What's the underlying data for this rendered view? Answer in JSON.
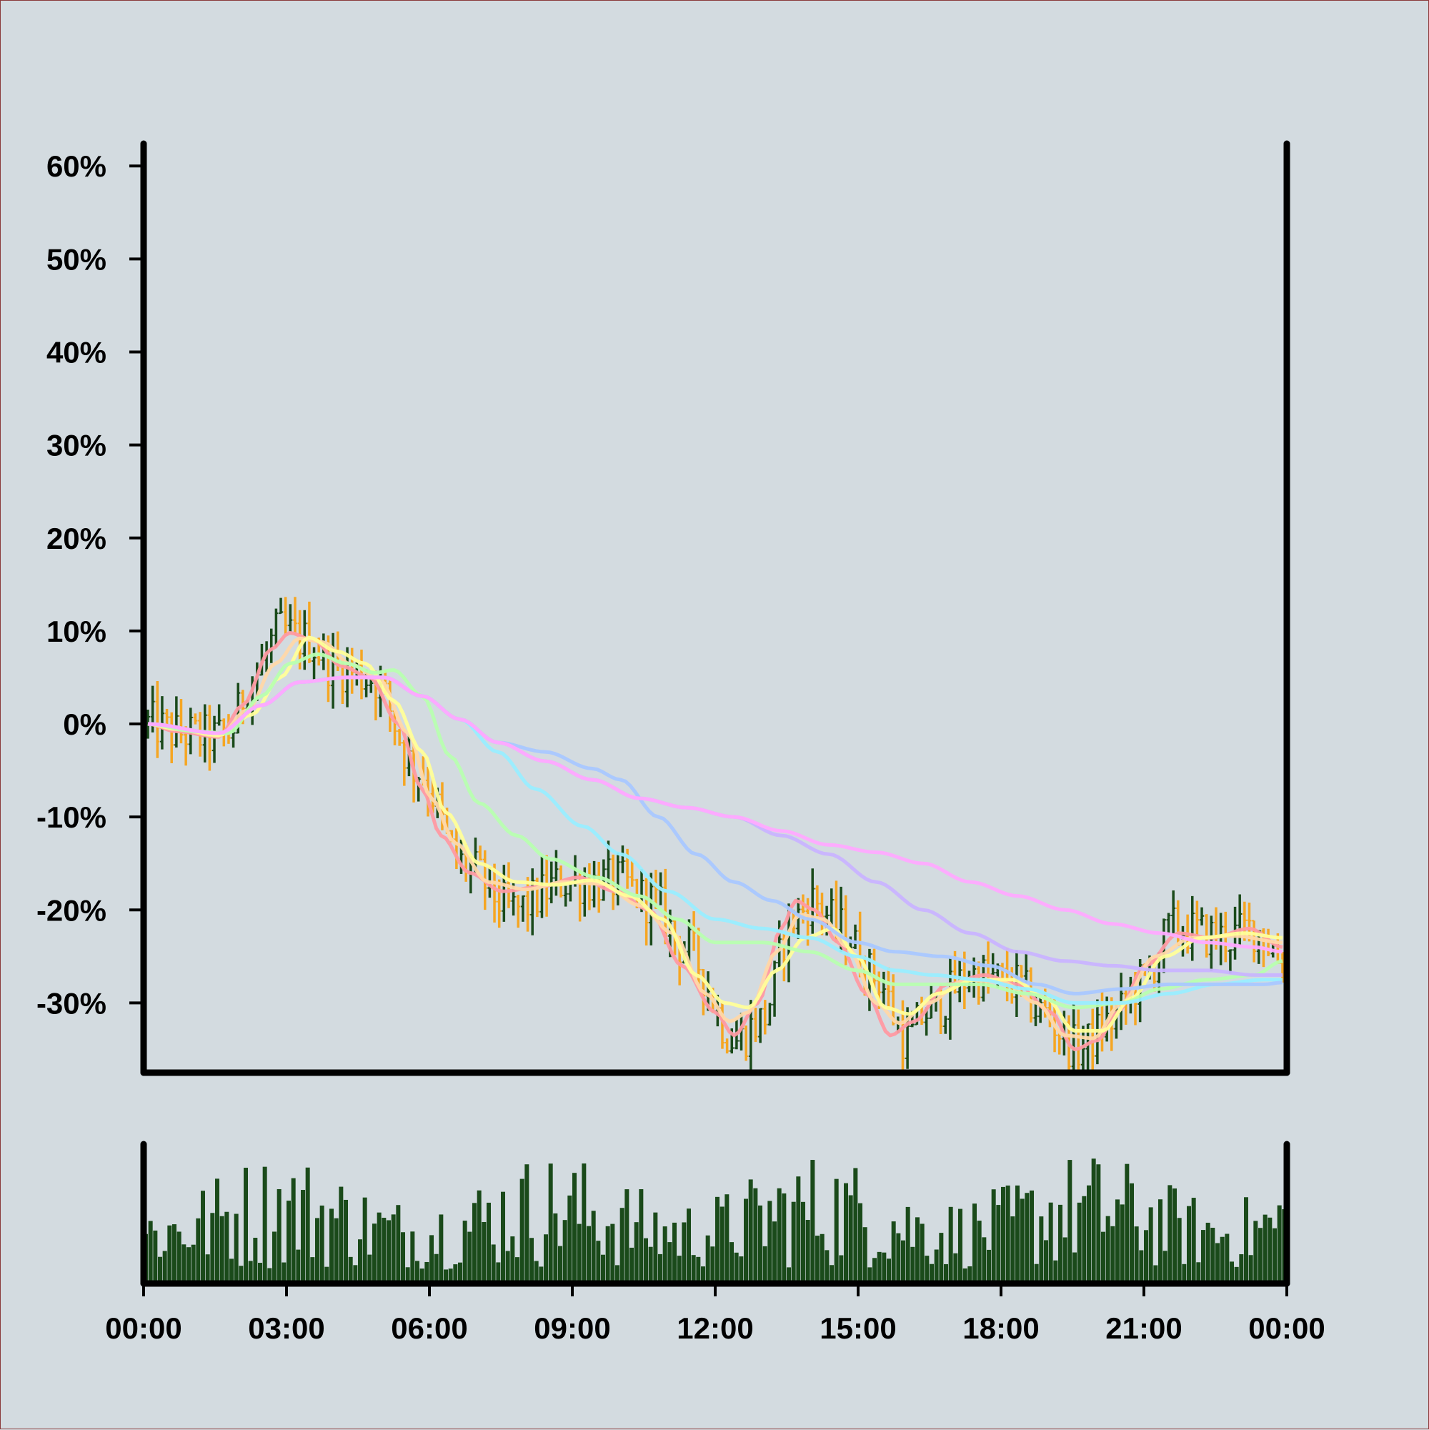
{
  "chart_data": {
    "type": "ohlc",
    "title": "",
    "xlabel": "",
    "ylabel": "",
    "ylim": [
      -37.5,
      62.4
    ],
    "y_ticks": [
      60,
      50,
      40,
      30,
      20,
      10,
      0,
      -10,
      -20,
      -30
    ],
    "y_tick_labels": [
      "60%",
      "50%",
      "40%",
      "30%",
      "20%",
      "10%",
      "0%",
      "-10%",
      "-20%",
      "-30%"
    ],
    "x_tick_labels": [
      "00:00",
      "03:00",
      "06:00",
      "09:00",
      "12:00",
      "15:00",
      "18:00",
      "21:00",
      "00:00"
    ],
    "bar_count": 240,
    "up_color": "#1a4a1a",
    "down_color": "#f5a623",
    "volume_color": "#1a4a1a",
    "price_path": [
      [
        0,
        0
      ],
      [
        6,
        -1
      ],
      [
        14,
        -1.5
      ],
      [
        17,
        -1
      ],
      [
        22,
        5
      ],
      [
        28,
        10
      ],
      [
        33,
        9
      ],
      [
        40,
        6
      ],
      [
        47,
        5
      ],
      [
        57,
        -5
      ],
      [
        66,
        -15
      ],
      [
        77,
        -20
      ],
      [
        88,
        -17
      ],
      [
        99,
        -17
      ],
      [
        106,
        -19
      ],
      [
        113,
        -24
      ],
      [
        124,
        -34
      ],
      [
        129,
        -32
      ],
      [
        136,
        -21
      ],
      [
        140,
        -19
      ],
      [
        146,
        -22
      ],
      [
        153,
        -27
      ],
      [
        160,
        -34
      ],
      [
        164,
        -31
      ],
      [
        174,
        -27
      ],
      [
        183,
        -28
      ],
      [
        188,
        -31
      ],
      [
        196,
        -35
      ],
      [
        203,
        -32
      ],
      [
        209,
        -28
      ],
      [
        216,
        -22
      ],
      [
        227,
        -23
      ],
      [
        233,
        -22
      ],
      [
        240,
        -26
      ]
    ],
    "series": [
      {
        "color": "#ff9aa2",
        "values": [
          [
            0,
            0
          ],
          [
            6,
            -0.8
          ],
          [
            15,
            -1.4
          ],
          [
            20,
            2
          ],
          [
            26,
            8
          ],
          [
            30,
            9.8
          ],
          [
            35,
            9
          ],
          [
            41,
            6.2
          ],
          [
            47,
            5
          ],
          [
            53,
            0
          ],
          [
            58,
            -7
          ],
          [
            62,
            -12
          ],
          [
            68,
            -16
          ],
          [
            75,
            -18
          ],
          [
            83,
            -17.5
          ],
          [
            91,
            -16.5
          ],
          [
            99,
            -18
          ],
          [
            106,
            -20
          ],
          [
            113,
            -26
          ],
          [
            120,
            -31
          ],
          [
            124,
            -33.5
          ],
          [
            129,
            -30
          ],
          [
            134,
            -22
          ],
          [
            137,
            -19
          ],
          [
            141,
            -20
          ],
          [
            146,
            -23.5
          ],
          [
            152,
            -29
          ],
          [
            157,
            -33.5
          ],
          [
            162,
            -32
          ],
          [
            169,
            -28
          ],
          [
            177,
            -27
          ],
          [
            184,
            -28
          ],
          [
            191,
            -31
          ],
          [
            196,
            -35
          ],
          [
            201,
            -34
          ],
          [
            205,
            -31
          ],
          [
            211,
            -26
          ],
          [
            218,
            -22.5
          ],
          [
            225,
            -23
          ],
          [
            233,
            -22
          ],
          [
            240,
            -24
          ]
        ]
      },
      {
        "color": "#ffd8a8",
        "values": [
          [
            0,
            0
          ],
          [
            6,
            -0.6
          ],
          [
            15,
            -1.3
          ],
          [
            21,
            1.5
          ],
          [
            27,
            6.5
          ],
          [
            32,
            9.2
          ],
          [
            37,
            8.8
          ],
          [
            43,
            6.4
          ],
          [
            49,
            4.8
          ],
          [
            55,
            -1
          ],
          [
            60,
            -8
          ],
          [
            65,
            -12.8
          ],
          [
            72,
            -17
          ],
          [
            80,
            -17.8
          ],
          [
            88,
            -17
          ],
          [
            96,
            -17.2
          ],
          [
            104,
            -19.5
          ],
          [
            111,
            -22.5
          ],
          [
            118,
            -29
          ],
          [
            123,
            -32
          ],
          [
            127,
            -31
          ],
          [
            133,
            -24.5
          ],
          [
            138,
            -20.5
          ],
          [
            143,
            -21
          ],
          [
            148,
            -24
          ],
          [
            154,
            -30
          ],
          [
            159,
            -32.2
          ],
          [
            165,
            -30
          ],
          [
            173,
            -27.5
          ],
          [
            181,
            -27.8
          ],
          [
            188,
            -30
          ],
          [
            194,
            -33.5
          ],
          [
            200,
            -33.8
          ],
          [
            206,
            -30
          ],
          [
            213,
            -25
          ],
          [
            221,
            -23
          ],
          [
            230,
            -22.8
          ],
          [
            240,
            -23.5
          ]
        ]
      },
      {
        "color": "#ffff99",
        "values": [
          [
            0,
            0
          ],
          [
            6,
            -0.5
          ],
          [
            15,
            -1.2
          ],
          [
            22,
            1
          ],
          [
            28,
            5
          ],
          [
            34,
            9.3
          ],
          [
            40,
            7.8
          ],
          [
            46,
            6.5
          ],
          [
            52,
            2.5
          ],
          [
            58,
            -3
          ],
          [
            63,
            -9.5
          ],
          [
            70,
            -15
          ],
          [
            78,
            -17
          ],
          [
            86,
            -17.3
          ],
          [
            94,
            -16.8
          ],
          [
            102,
            -18.5
          ],
          [
            109,
            -21
          ],
          [
            116,
            -27
          ],
          [
            122,
            -30
          ],
          [
            127,
            -30.5
          ],
          [
            133,
            -26.5
          ],
          [
            139,
            -23
          ],
          [
            145,
            -22
          ],
          [
            150,
            -25
          ],
          [
            156,
            -30.5
          ],
          [
            161,
            -31.2
          ],
          [
            167,
            -29
          ],
          [
            175,
            -27.5
          ],
          [
            183,
            -27.5
          ],
          [
            190,
            -29.5
          ],
          [
            196,
            -33
          ],
          [
            202,
            -33
          ],
          [
            208,
            -29.5
          ],
          [
            215,
            -25
          ],
          [
            223,
            -23
          ],
          [
            232,
            -22.5
          ],
          [
            240,
            -23
          ]
        ]
      },
      {
        "color": "#b8ffb0",
        "values": [
          [
            0,
            0
          ],
          [
            10,
            -0.8
          ],
          [
            17,
            -1
          ],
          [
            24,
            3
          ],
          [
            30,
            6.5
          ],
          [
            36,
            7.5
          ],
          [
            42,
            6.5
          ],
          [
            48,
            5.5
          ],
          [
            52,
            5.8
          ],
          [
            58,
            3
          ],
          [
            64,
            -3.5
          ],
          [
            70,
            -8.5
          ],
          [
            78,
            -12
          ],
          [
            85,
            -14.5
          ],
          [
            95,
            -16.5
          ],
          [
            104,
            -18.5
          ],
          [
            112,
            -21
          ],
          [
            120,
            -23.5
          ],
          [
            130,
            -23.5
          ],
          [
            140,
            -24.5
          ],
          [
            150,
            -26.5
          ],
          [
            158,
            -28
          ],
          [
            166,
            -28
          ],
          [
            176,
            -28
          ],
          [
            186,
            -29
          ],
          [
            196,
            -30.5
          ],
          [
            206,
            -30
          ],
          [
            214,
            -28.5
          ],
          [
            224,
            -27.5
          ],
          [
            234,
            -27
          ],
          [
            240,
            -25.5
          ]
        ]
      },
      {
        "color": "#99eeff",
        "values": [
          [
            0,
            0
          ],
          [
            15,
            -1
          ],
          [
            24,
            2
          ],
          [
            32,
            4.5
          ],
          [
            42,
            5
          ],
          [
            50,
            5
          ],
          [
            58,
            3
          ],
          [
            66,
            0.5
          ],
          [
            74,
            -3
          ],
          [
            82,
            -7
          ],
          [
            92,
            -11
          ],
          [
            100,
            -14
          ],
          [
            110,
            -18
          ],
          [
            120,
            -21
          ],
          [
            130,
            -22
          ],
          [
            140,
            -23
          ],
          [
            150,
            -25
          ],
          [
            158,
            -26.5
          ],
          [
            166,
            -27
          ],
          [
            176,
            -27.5
          ],
          [
            186,
            -28.5
          ],
          [
            196,
            -30
          ],
          [
            206,
            -30
          ],
          [
            216,
            -29
          ],
          [
            226,
            -28
          ],
          [
            236,
            -27.5
          ],
          [
            240,
            -27.5
          ]
        ]
      },
      {
        "color": "#a9c8ff",
        "values": [
          [
            0,
            0
          ],
          [
            15,
            -1
          ],
          [
            24,
            2
          ],
          [
            32,
            4.5
          ],
          [
            42,
            5
          ],
          [
            50,
            5
          ],
          [
            58,
            3
          ],
          [
            66,
            0.5
          ],
          [
            74,
            -2
          ],
          [
            84,
            -3
          ],
          [
            94,
            -4.8
          ],
          [
            100,
            -6
          ],
          [
            108,
            -10
          ],
          [
            116,
            -14
          ],
          [
            124,
            -17
          ],
          [
            132,
            -19
          ],
          [
            140,
            -21
          ],
          [
            150,
            -23.5
          ],
          [
            158,
            -24.5
          ],
          [
            168,
            -25
          ],
          [
            178,
            -26
          ],
          [
            188,
            -28
          ],
          [
            196,
            -29
          ],
          [
            206,
            -28.5
          ],
          [
            216,
            -28
          ],
          [
            226,
            -28
          ],
          [
            236,
            -28
          ],
          [
            240,
            -27.8
          ]
        ]
      },
      {
        "color": "#c9b4ff",
        "values": [
          [
            0,
            0
          ],
          [
            15,
            -1
          ],
          [
            24,
            2
          ],
          [
            32,
            4.5
          ],
          [
            42,
            5
          ],
          [
            50,
            5
          ],
          [
            58,
            3
          ],
          [
            66,
            0.5
          ],
          [
            74,
            -2
          ],
          [
            84,
            -4
          ],
          [
            94,
            -6
          ],
          [
            104,
            -8
          ],
          [
            114,
            -9
          ],
          [
            124,
            -10
          ],
          [
            134,
            -12
          ],
          [
            144,
            -14
          ],
          [
            154,
            -17
          ],
          [
            164,
            -20
          ],
          [
            174,
            -22.5
          ],
          [
            184,
            -24.5
          ],
          [
            194,
            -25.5
          ],
          [
            204,
            -26
          ],
          [
            214,
            -26.5
          ],
          [
            224,
            -26.5
          ],
          [
            234,
            -27
          ],
          [
            240,
            -27
          ]
        ]
      },
      {
        "color": "#ffaaff",
        "values": [
          [
            0,
            0
          ],
          [
            15,
            -1
          ],
          [
            24,
            2
          ],
          [
            32,
            4.5
          ],
          [
            42,
            5
          ],
          [
            50,
            5
          ],
          [
            58,
            3
          ],
          [
            66,
            0.5
          ],
          [
            74,
            -2
          ],
          [
            84,
            -4
          ],
          [
            94,
            -6
          ],
          [
            104,
            -8
          ],
          [
            114,
            -9
          ],
          [
            124,
            -10
          ],
          [
            134,
            -11.5
          ],
          [
            144,
            -13
          ],
          [
            154,
            -13.8
          ],
          [
            164,
            -15
          ],
          [
            174,
            -17
          ],
          [
            184,
            -18.5
          ],
          [
            194,
            -20
          ],
          [
            204,
            -21.5
          ],
          [
            214,
            -22.5
          ],
          [
            224,
            -23.5
          ],
          [
            234,
            -24
          ],
          [
            240,
            -24.5
          ]
        ]
      }
    ]
  }
}
